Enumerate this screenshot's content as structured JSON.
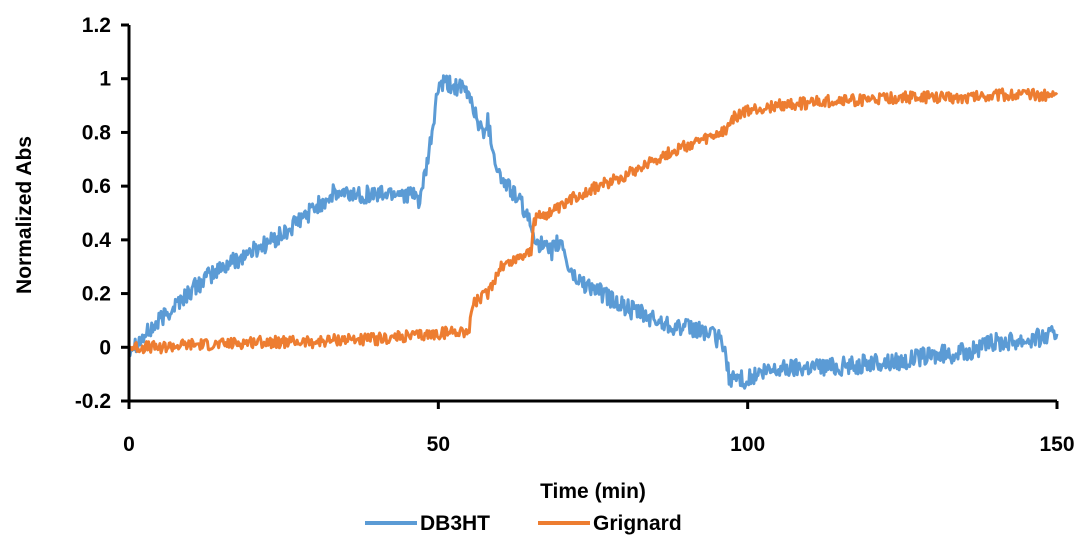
{
  "chart_data": {
    "type": "line",
    "title": "",
    "xlabel": "Time (min)",
    "ylabel": "Normalized Abs",
    "xlim": [
      0,
      150
    ],
    "ylim": [
      -0.2,
      1.2
    ],
    "x_ticks": [
      0,
      50,
      100,
      150
    ],
    "x_tick_labels": [
      "0",
      "50",
      "100",
      "150"
    ],
    "y_ticks": [
      -0.2,
      0,
      0.2,
      0.4,
      0.6,
      0.8,
      1,
      1.2
    ],
    "y_tick_labels": [
      "-0.2",
      "0",
      "0.2",
      "0.4",
      "0.6",
      "0.8",
      "1",
      "1.2"
    ],
    "grid": false,
    "legend_position": "bottom",
    "series": [
      {
        "name": "DB3HT",
        "color": "#5B9BD5",
        "x": [
          0,
          2,
          5,
          8,
          12,
          16,
          20,
          25,
          30,
          33,
          36,
          40,
          44,
          47,
          48,
          49,
          50,
          51,
          53,
          55,
          57,
          58,
          59,
          60,
          62,
          64,
          65,
          66,
          67,
          68,
          69,
          70,
          71,
          72,
          75,
          80,
          85,
          90,
          93,
          96,
          96.5,
          97,
          100,
          102,
          105,
          110,
          115,
          120,
          125,
          130,
          135,
          138,
          140,
          145,
          148,
          150
        ],
        "y": [
          0.0,
          0.03,
          0.1,
          0.17,
          0.25,
          0.31,
          0.36,
          0.42,
          0.52,
          0.57,
          0.57,
          0.57,
          0.58,
          0.55,
          0.65,
          0.8,
          0.97,
          0.98,
          0.97,
          0.94,
          0.8,
          0.84,
          0.72,
          0.63,
          0.58,
          0.51,
          0.44,
          0.4,
          0.37,
          0.35,
          0.38,
          0.39,
          0.3,
          0.26,
          0.22,
          0.15,
          0.1,
          0.07,
          0.06,
          0.02,
          -0.05,
          -0.11,
          -0.12,
          -0.1,
          -0.08,
          -0.07,
          -0.07,
          -0.06,
          -0.05,
          -0.03,
          -0.02,
          0.0,
          0.02,
          0.03,
          0.04,
          0.05
        ]
      },
      {
        "name": "Grignard",
        "color": "#ED7D31",
        "x": [
          0,
          5,
          10,
          15,
          20,
          25,
          30,
          35,
          40,
          45,
          50,
          53,
          55,
          55.5,
          58,
          60,
          62,
          64,
          65,
          65.5,
          66,
          68,
          70,
          72,
          75,
          78,
          80,
          85,
          90,
          93,
          96,
          97,
          98,
          100,
          105,
          110,
          115,
          120,
          125,
          130,
          135,
          140,
          145,
          150
        ],
        "y": [
          0.0,
          0.0,
          0.01,
          0.01,
          0.02,
          0.02,
          0.02,
          0.03,
          0.03,
          0.04,
          0.05,
          0.06,
          0.06,
          0.16,
          0.2,
          0.3,
          0.32,
          0.35,
          0.36,
          0.46,
          0.49,
          0.5,
          0.52,
          0.56,
          0.59,
          0.62,
          0.64,
          0.7,
          0.75,
          0.77,
          0.8,
          0.83,
          0.86,
          0.88,
          0.9,
          0.91,
          0.92,
          0.92,
          0.93,
          0.93,
          0.93,
          0.94,
          0.94,
          0.94
        ]
      }
    ]
  }
}
